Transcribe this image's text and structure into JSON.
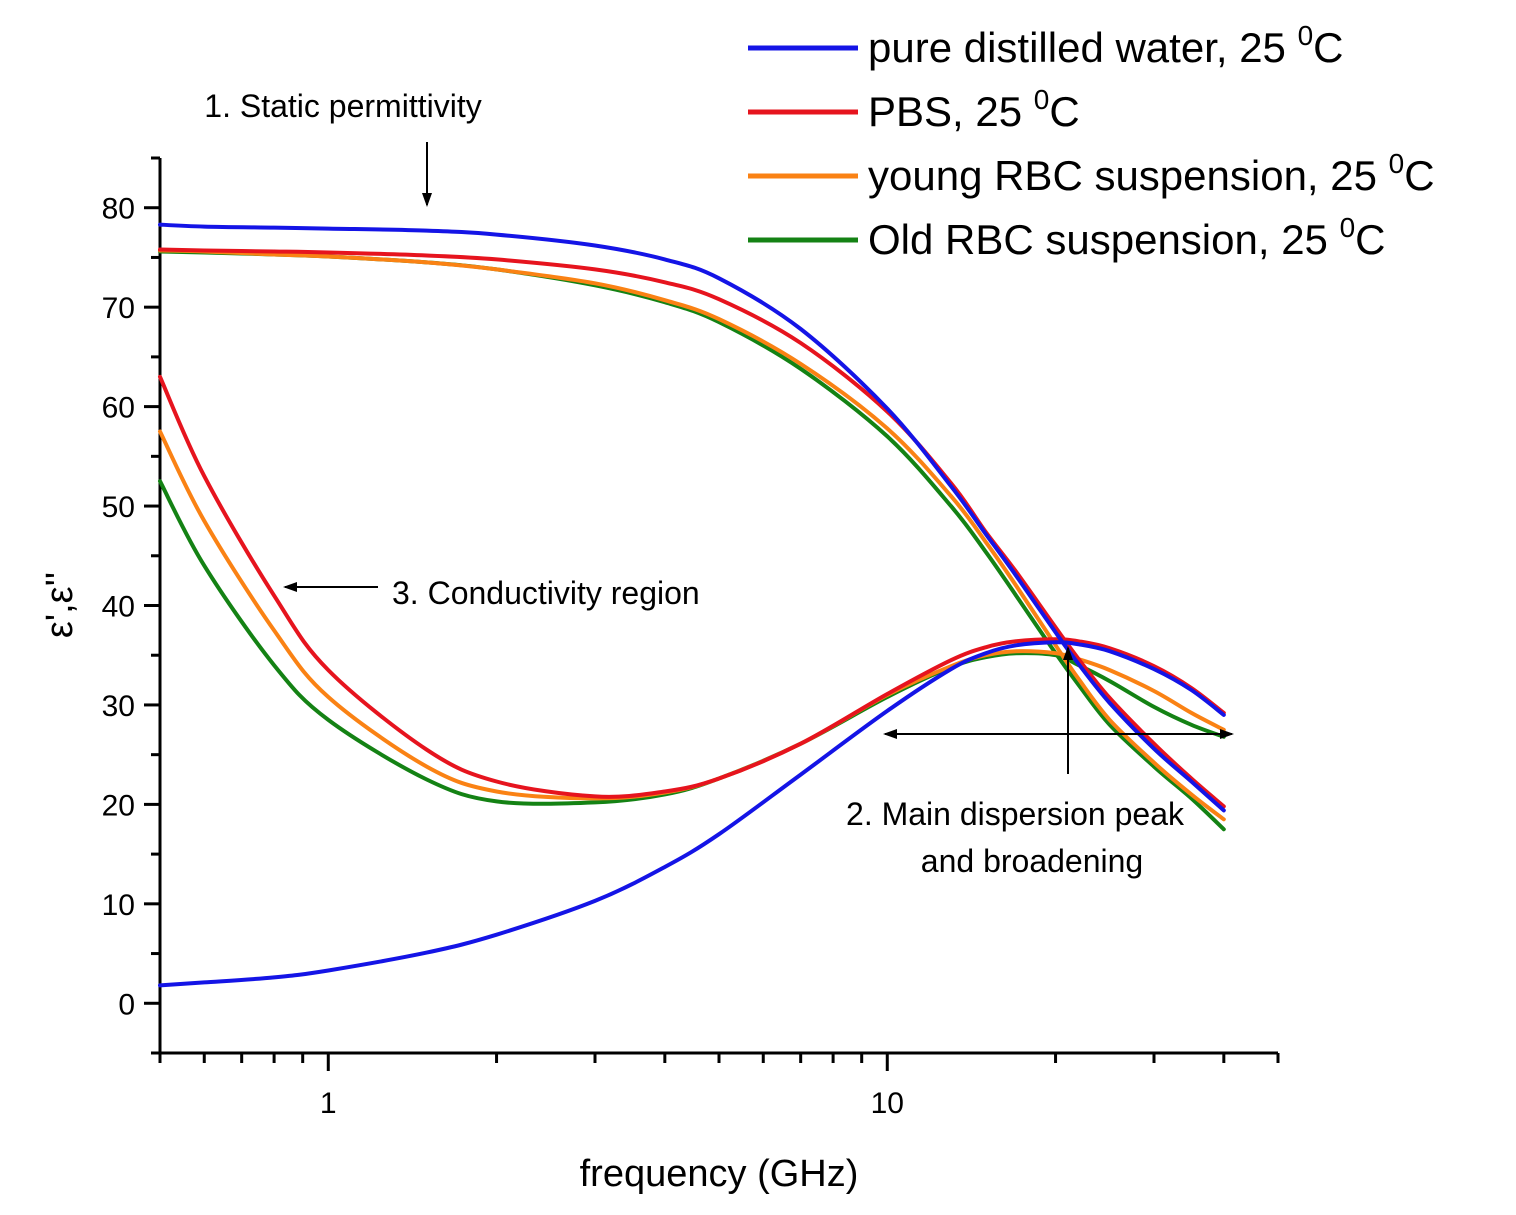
{
  "chart_data": {
    "type": "line",
    "title": "",
    "xlabel": "frequency (GHz)",
    "ylabel": "ε',ε''",
    "xscale": "log",
    "xlim": [
      0.5,
      50
    ],
    "ylim": [
      -5,
      85
    ],
    "x_tick_labels": [
      "1",
      "10"
    ],
    "y_tick_labels": [
      "0",
      "10",
      "20",
      "30",
      "40",
      "50",
      "60",
      "70",
      "80"
    ],
    "legend_position": "top-right",
    "x": [
      0.5,
      0.6,
      0.8,
      1.0,
      1.5,
      2.0,
      3.0,
      4.0,
      5.0,
      7.0,
      10.0,
      13.0,
      15.0,
      17.0,
      20.0,
      22.0,
      25.0,
      30.0,
      35.0,
      40.0
    ],
    "series": [
      {
        "name": "pure distilled water,  25 ",
        "name_sup": "0",
        "name_unit": "C",
        "color": "#1414e6",
        "eps_real": [
          78.3,
          78.1,
          78.0,
          77.9,
          77.7,
          77.3,
          76.2,
          74.8,
          72.9,
          67.8,
          59.8,
          52.0,
          47.2,
          43.0,
          37.3,
          34.1,
          30.2,
          25.6,
          22.3,
          19.4
        ],
        "eps_imag": [
          1.8,
          2.1,
          2.6,
          3.3,
          5.1,
          6.9,
          10.3,
          13.7,
          17.0,
          23.0,
          29.4,
          33.6,
          35.2,
          36.0,
          36.3,
          36.1,
          35.4,
          33.6,
          31.5,
          29.0
        ]
      },
      {
        "name": "PBS, 25 ",
        "name_sup": "0",
        "name_unit": "C",
        "color": "#e6141e",
        "eps_real": [
          75.8,
          75.7,
          75.6,
          75.5,
          75.2,
          74.8,
          73.8,
          72.5,
          70.8,
          66.4,
          59.5,
          52.3,
          47.4,
          43.4,
          37.8,
          34.6,
          30.7,
          26.1,
          22.6,
          19.8
        ],
        "eps_imag": [
          63.0,
          53.0,
          41.0,
          33.5,
          25.5,
          22.3,
          20.8,
          21.3,
          22.6,
          26.1,
          31.1,
          34.5,
          35.8,
          36.4,
          36.6,
          36.4,
          35.7,
          33.9,
          31.7,
          29.2
        ]
      },
      {
        "name": "young RBC suspension, 25 ",
        "name_sup": "0",
        "name_unit": "C",
        "color": "#fa8214",
        "eps_real": [
          75.7,
          75.6,
          75.3,
          75.1,
          74.5,
          73.8,
          72.4,
          70.7,
          68.8,
          64.3,
          57.8,
          51.0,
          46.4,
          42.0,
          36.0,
          32.6,
          28.5,
          24.2,
          21.0,
          18.5
        ],
        "eps_imag": [
          57.5,
          48.5,
          37.5,
          30.8,
          23.8,
          21.3,
          20.6,
          21.2,
          22.6,
          26.1,
          31.0,
          33.9,
          35.0,
          35.4,
          35.2,
          34.6,
          33.5,
          31.4,
          29.2,
          27.5
        ]
      },
      {
        "name": "Old RBC suspension, 25 ",
        "name_sup": "0",
        "name_unit": "C",
        "color": "#148214",
        "eps_real": [
          75.6,
          75.5,
          75.3,
          75.1,
          74.5,
          73.8,
          72.2,
          70.5,
          68.5,
          63.8,
          57.0,
          50.0,
          45.4,
          41.0,
          35.2,
          32.0,
          28.0,
          23.8,
          20.6,
          17.5
        ],
        "eps_imag": [
          52.5,
          44.0,
          34.0,
          28.5,
          22.5,
          20.3,
          20.2,
          21.0,
          22.6,
          26.1,
          30.8,
          33.8,
          34.8,
          35.2,
          35.0,
          34.0,
          32.4,
          29.8,
          28.0,
          26.8
        ]
      }
    ],
    "annotations": [
      {
        "id": "static",
        "text": "1. Static permittivity"
      },
      {
        "id": "conductivity",
        "text": "3. Conductivity region"
      },
      {
        "id": "main_line1",
        "text": "2. Main dispersion peak"
      },
      {
        "id": "main_line2",
        "text": "and broadening"
      }
    ]
  }
}
